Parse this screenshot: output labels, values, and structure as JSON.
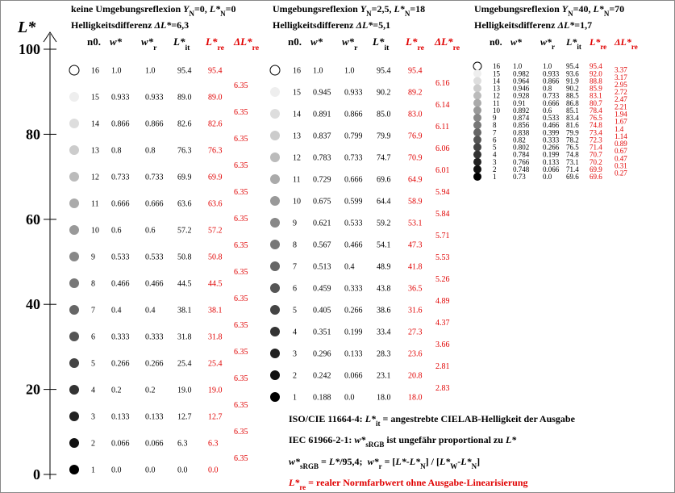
{
  "axis": {
    "label": "L*",
    "ticks": [
      0,
      20,
      40,
      60,
      80,
      100
    ]
  },
  "tables": [
    {
      "title": [
        "keine Umgebungsreflexion ",
        "Y",
        "N",
        "=0, ",
        "L*",
        "N",
        "=0"
      ],
      "subtitle": [
        "Helligkeitsdifferenz ",
        "ΔL*",
        "=6,3"
      ],
      "columns": [
        [
          "n0."
        ],
        [
          "w*"
        ],
        [
          "w*",
          "r"
        ],
        [
          "L*",
          "it"
        ],
        [
          "L*",
          "re"
        ],
        [
          "ΔL*",
          "re"
        ]
      ],
      "rows": [
        [
          "16",
          "1.0",
          "1.0",
          "95.4",
          "95.4"
        ],
        [
          "15",
          "0.933",
          "0.933",
          "89.0",
          "89.0"
        ],
        [
          "14",
          "0.866",
          "0.866",
          "82.6",
          "82.6"
        ],
        [
          "13",
          "0.8",
          "0.8",
          "76.3",
          "76.3"
        ],
        [
          "12",
          "0.733",
          "0.733",
          "69.9",
          "69.9"
        ],
        [
          "11",
          "0.666",
          "0.666",
          "63.6",
          "63.6"
        ],
        [
          "10",
          "0.6",
          "0.6",
          "57.2",
          "57.2"
        ],
        [
          "9",
          "0.533",
          "0.533",
          "50.8",
          "50.8"
        ],
        [
          "8",
          "0.466",
          "0.466",
          "44.5",
          "44.5"
        ],
        [
          "7",
          "0.4",
          "0.4",
          "38.1",
          "38.1"
        ],
        [
          "6",
          "0.333",
          "0.333",
          "31.8",
          "31.8"
        ],
        [
          "5",
          "0.266",
          "0.266",
          "25.4",
          "25.4"
        ],
        [
          "4",
          "0.2",
          "0.2",
          "19.0",
          "19.0"
        ],
        [
          "3",
          "0.133",
          "0.133",
          "12.7",
          "12.7"
        ],
        [
          "2",
          "0.066",
          "0.066",
          "6.3",
          "6.3"
        ],
        [
          "1",
          "0.0",
          "0.0",
          "0.0",
          "0.0"
        ]
      ],
      "deltas": [
        "6.35",
        "6.35",
        "6.35",
        "6.35",
        "6.35",
        "6.35",
        "6.35",
        "6.35",
        "6.35",
        "6.35",
        "6.35",
        "6.35",
        "6.35",
        "6.35",
        "6.35"
      ]
    },
    {
      "title": [
        "Umgebungsreflexion ",
        "Y",
        "N",
        "=2,5, ",
        "L*",
        "N",
        "=18"
      ],
      "subtitle": [
        "Helligkeitsdifferenz ",
        "ΔL*",
        "=5,1"
      ],
      "columns": [
        [
          "n0."
        ],
        [
          "w*"
        ],
        [
          "w*",
          "r"
        ],
        [
          "L*",
          "it"
        ],
        [
          "L*",
          "re"
        ],
        [
          "ΔL*",
          "re"
        ]
      ],
      "rows": [
        [
          "16",
          "1.0",
          "1.0",
          "95.4",
          "95.4"
        ],
        [
          "15",
          "0.945",
          "0.933",
          "90.2",
          "89.2"
        ],
        [
          "14",
          "0.891",
          "0.866",
          "85.0",
          "83.0"
        ],
        [
          "13",
          "0.837",
          "0.799",
          "79.9",
          "76.9"
        ],
        [
          "12",
          "0.783",
          "0.733",
          "74.7",
          "70.9"
        ],
        [
          "11",
          "0.729",
          "0.666",
          "69.6",
          "64.9"
        ],
        [
          "10",
          "0.675",
          "0.599",
          "64.4",
          "58.9"
        ],
        [
          "9",
          "0.621",
          "0.533",
          "59.2",
          "53.1"
        ],
        [
          "8",
          "0.567",
          "0.466",
          "54.1",
          "47.3"
        ],
        [
          "7",
          "0.513",
          "0.4",
          "48.9",
          "41.8"
        ],
        [
          "6",
          "0.459",
          "0.333",
          "43.8",
          "36.5"
        ],
        [
          "5",
          "0.405",
          "0.266",
          "38.6",
          "31.6"
        ],
        [
          "4",
          "0.351",
          "0.199",
          "33.4",
          "27.3"
        ],
        [
          "3",
          "0.296",
          "0.133",
          "28.3",
          "23.6"
        ],
        [
          "2",
          "0.242",
          "0.066",
          "23.1",
          "20.8"
        ],
        [
          "1",
          "0.188",
          "0.0",
          "18.0",
          "18.0"
        ]
      ],
      "deltas": [
        "6.16",
        "6.14",
        "6.11",
        "6.06",
        "6.01",
        "5.94",
        "5.84",
        "5.71",
        "5.53",
        "5.26",
        "4.89",
        "4.37",
        "3.66",
        "2.81",
        "2.83"
      ]
    },
    {
      "title": [
        "Umgebungsreflexion ",
        "Y",
        "N",
        "=40, ",
        "L*",
        "N",
        "=70"
      ],
      "subtitle": [
        "Helligkeitsdifferenz ",
        "ΔL*",
        "=1,7"
      ],
      "columns": [
        [
          "n0."
        ],
        [
          "w*"
        ],
        [
          "w*",
          "r"
        ],
        [
          "L*",
          "it"
        ],
        [
          "L*",
          "re"
        ],
        [
          "ΔL*",
          "re"
        ]
      ],
      "rows": [
        [
          "16",
          "1.0",
          "1.0",
          "95.4",
          "95.4"
        ],
        [
          "15",
          "0.982",
          "0.933",
          "93.6",
          "92.0"
        ],
        [
          "14",
          "0.964",
          "0.866",
          "91.9",
          "88.8"
        ],
        [
          "13",
          "0.946",
          "0.8",
          "90.2",
          "85.9"
        ],
        [
          "12",
          "0.928",
          "0.733",
          "88.5",
          "83.1"
        ],
        [
          "11",
          "0.91",
          "0.666",
          "86.8",
          "80.7"
        ],
        [
          "10",
          "0.892",
          "0.6",
          "85.1",
          "78.4"
        ],
        [
          "9",
          "0.874",
          "0.533",
          "83.4",
          "76.5"
        ],
        [
          "8",
          "0.856",
          "0.466",
          "81.6",
          "74.8"
        ],
        [
          "7",
          "0.838",
          "0.399",
          "79.9",
          "73.4"
        ],
        [
          "6",
          "0.82",
          "0.333",
          "78.2",
          "72.3"
        ],
        [
          "5",
          "0.802",
          "0.266",
          "76.5",
          "71.4"
        ],
        [
          "4",
          "0.784",
          "0.199",
          "74.8",
          "70.7"
        ],
        [
          "3",
          "0.766",
          "0.133",
          "73.1",
          "70.2"
        ],
        [
          "2",
          "0.748",
          "0.066",
          "71.4",
          "69.9"
        ],
        [
          "1",
          "0.73",
          "0.0",
          "69.6",
          "69.6"
        ]
      ],
      "deltas": [
        "3.37",
        "3.17",
        "2.95",
        "2.72",
        "2.47",
        "2.21",
        "1.94",
        "1.67",
        "1.4",
        "1.14",
        "0.89",
        "0.67",
        "0.47",
        "0.31",
        "0.27"
      ]
    }
  ],
  "notes": [
    [
      "ISO/CIE 11664-4: ",
      "L*",
      "it",
      " = angestrebte CIELAB-Helligkeit der Ausgabe"
    ],
    [
      "IEC 61966-2-1: ",
      "w*",
      "sRGB",
      " ist ungefähr proportional zu ",
      "L*"
    ],
    [
      "w*",
      "sRGB",
      " = ",
      "L*",
      "/95,4;  ",
      "w*",
      "r",
      " = [",
      "L*",
      "-",
      "L*",
      "N",
      "] / [",
      "L*",
      "W",
      "-",
      "L*",
      "N",
      "]"
    ],
    [
      "L*",
      "re",
      " = realer Normfarbwert ohne Ausgabe-Linearisierung"
    ]
  ]
}
